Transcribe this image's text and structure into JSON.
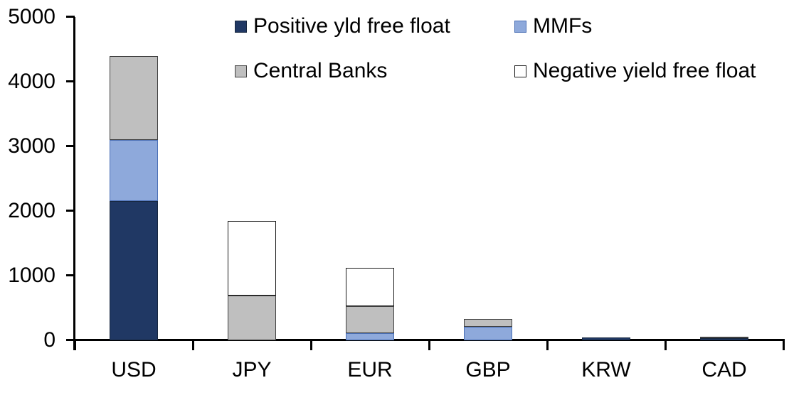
{
  "chart_data": {
    "type": "bar",
    "stacked": true,
    "title": "",
    "xlabel": "",
    "ylabel": "",
    "categories": [
      "USD",
      "JPY",
      "EUR",
      "GBP",
      "KRW",
      "CAD"
    ],
    "series": [
      {
        "name": "Positive yld free float",
        "color": "#203864",
        "border": "#17273f",
        "values": [
          2150,
          0,
          0,
          0,
          40,
          30
        ]
      },
      {
        "name": "MMFs",
        "color": "#8EA9DB",
        "border": "#4a6fb5",
        "values": [
          950,
          0,
          110,
          210,
          0,
          0
        ]
      },
      {
        "name": "Central Banks",
        "color": "#BFBFBF",
        "border": "#404040",
        "values": [
          1300,
          690,
          420,
          120,
          0,
          25
        ]
      },
      {
        "name": "Negative yield free float",
        "color": "#FFFFFF",
        "border": "#1a1a1a",
        "values": [
          0,
          1160,
          590,
          0,
          0,
          0
        ]
      }
    ],
    "ylim": [
      0,
      5000
    ],
    "yticks": [
      0,
      1000,
      2000,
      3000,
      4000,
      5000
    ],
    "ytick_labels": [
      "0",
      "1000",
      "2000",
      "3000",
      "4000",
      "5000"
    ],
    "grid": false,
    "legend_position": "top-inside",
    "legend_rows": [
      [
        "Positive yld free float",
        "MMFs"
      ],
      [
        "Central Banks",
        "Negative yield free float"
      ]
    ],
    "axis_color": "#000000",
    "text_color": "#000000",
    "background_color": "#FFFFFF"
  }
}
